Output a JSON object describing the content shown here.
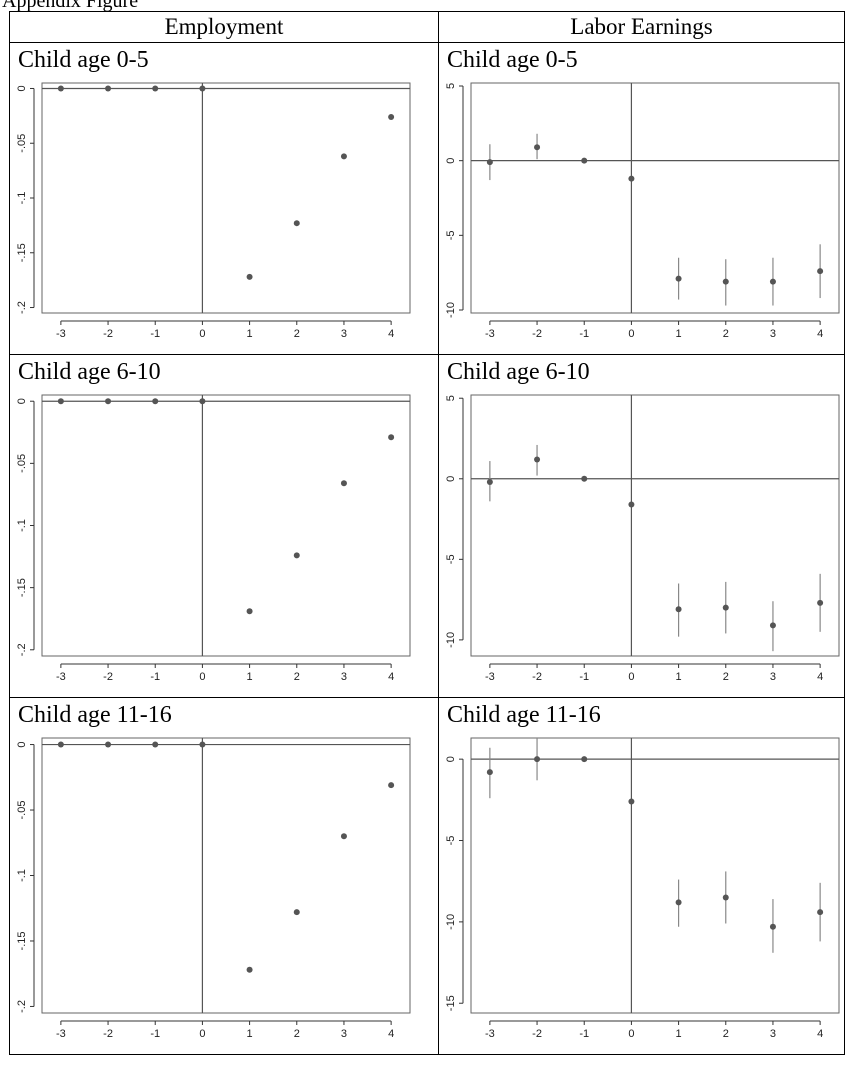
{
  "caption": "Appendix Figure",
  "columns": [
    "Employment",
    "Labor Earnings"
  ],
  "marker_color": "#555555",
  "panels": [
    {
      "row": 0,
      "col": 0,
      "title": "Child age 0-5",
      "chart_data": {
        "type": "scatter",
        "x": [
          -3,
          -2,
          -1,
          0,
          1,
          2,
          3,
          4
        ],
        "y": [
          0,
          0,
          0,
          0,
          -0.172,
          -0.123,
          -0.062,
          -0.026
        ],
        "xticks": [
          "-3",
          "-2",
          "-1",
          "0",
          "1",
          "2",
          "3",
          "4"
        ],
        "yticks": [
          {
            "v": 0,
            "l": "0"
          },
          {
            "v": -0.05,
            "l": "-.05"
          },
          {
            "v": -0.1,
            "l": "-.1"
          },
          {
            "v": -0.15,
            "l": "-.15"
          },
          {
            "v": -0.2,
            "l": "-.2"
          }
        ],
        "xlim": [
          -3.4,
          4.4
        ],
        "ylim": [
          -0.205,
          0.005
        ],
        "hline": 0,
        "vline": 0,
        "ci": null
      }
    },
    {
      "row": 0,
      "col": 1,
      "title": "Child age 0-5",
      "chart_data": {
        "type": "scatter",
        "x": [
          -3,
          -2,
          -1,
          0,
          1,
          2,
          3,
          4
        ],
        "y": [
          -0.1,
          0.9,
          0,
          -1.2,
          -7.9,
          -8.1,
          -8.1,
          -7.4
        ],
        "ci_low": [
          -1.3,
          0.1,
          null,
          null,
          -9.3,
          -9.7,
          -9.7,
          -9.2
        ],
        "ci_high": [
          1.1,
          1.8,
          null,
          null,
          -6.5,
          -6.6,
          -6.5,
          -5.6
        ],
        "xticks": [
          "-3",
          "-2",
          "-1",
          "0",
          "1",
          "2",
          "3",
          "4"
        ],
        "yticks": [
          {
            "v": 5,
            "l": "5"
          },
          {
            "v": 0,
            "l": "0"
          },
          {
            "v": -5,
            "l": "-5"
          },
          {
            "v": -10,
            "l": "-10"
          }
        ],
        "xlim": [
          -3.4,
          4.4
        ],
        "ylim": [
          -10.2,
          5.2
        ],
        "hline": 0,
        "vline": 0
      }
    },
    {
      "row": 1,
      "col": 0,
      "title": "Child age 6-10",
      "chart_data": {
        "type": "scatter",
        "x": [
          -3,
          -2,
          -1,
          0,
          1,
          2,
          3,
          4
        ],
        "y": [
          0,
          0,
          0,
          0,
          -0.169,
          -0.124,
          -0.066,
          -0.029
        ],
        "xticks": [
          "-3",
          "-2",
          "-1",
          "0",
          "1",
          "2",
          "3",
          "4"
        ],
        "yticks": [
          {
            "v": 0,
            "l": "0"
          },
          {
            "v": -0.05,
            "l": "-.05"
          },
          {
            "v": -0.1,
            "l": "-.1"
          },
          {
            "v": -0.15,
            "l": "-.15"
          },
          {
            "v": -0.2,
            "l": "-.2"
          }
        ],
        "xlim": [
          -3.4,
          4.4
        ],
        "ylim": [
          -0.205,
          0.005
        ],
        "hline": 0,
        "vline": 0,
        "ci": null
      }
    },
    {
      "row": 1,
      "col": 1,
      "title": "Child age 6-10",
      "chart_data": {
        "type": "scatter",
        "x": [
          -3,
          -2,
          -1,
          0,
          1,
          2,
          3,
          4
        ],
        "y": [
          -0.2,
          1.2,
          0,
          -1.6,
          -8.1,
          -8.0,
          -9.1,
          -7.7
        ],
        "ci_low": [
          -1.4,
          0.2,
          null,
          null,
          -9.8,
          -9.6,
          -10.7,
          -9.5
        ],
        "ci_high": [
          1.1,
          2.1,
          null,
          null,
          -6.5,
          -6.4,
          -7.6,
          -5.9
        ],
        "xticks": [
          "-3",
          "-2",
          "-1",
          "0",
          "1",
          "2",
          "3",
          "4"
        ],
        "yticks": [
          {
            "v": 5,
            "l": "5"
          },
          {
            "v": 0,
            "l": "0"
          },
          {
            "v": -5,
            "l": "-5"
          },
          {
            "v": -10,
            "l": "-10"
          }
        ],
        "xlim": [
          -3.4,
          4.4
        ],
        "ylim": [
          -11.0,
          5.2
        ],
        "hline": 0,
        "vline": 0
      }
    },
    {
      "row": 2,
      "col": 0,
      "title": "Child age 11-16",
      "chart_data": {
        "type": "scatter",
        "x": [
          -3,
          -2,
          -1,
          0,
          1,
          2,
          3,
          4
        ],
        "y": [
          0,
          0,
          0,
          0,
          -0.172,
          -0.128,
          -0.07,
          -0.031
        ],
        "xticks": [
          "-3",
          "-2",
          "-1",
          "0",
          "1",
          "2",
          "3",
          "4"
        ],
        "yticks": [
          {
            "v": 0,
            "l": "0"
          },
          {
            "v": -0.05,
            "l": "-.05"
          },
          {
            "v": -0.1,
            "l": "-.1"
          },
          {
            "v": -0.15,
            "l": "-.15"
          },
          {
            "v": -0.2,
            "l": "-.2"
          }
        ],
        "xlim": [
          -3.4,
          4.4
        ],
        "ylim": [
          -0.205,
          0.005
        ],
        "hline": 0,
        "vline": 0,
        "ci": null
      }
    },
    {
      "row": 2,
      "col": 1,
      "title": "Child age 11-16",
      "chart_data": {
        "type": "scatter",
        "x": [
          -3,
          -2,
          -1,
          0,
          1,
          2,
          3,
          4
        ],
        "y": [
          -0.8,
          0,
          0,
          -2.6,
          -8.8,
          -8.5,
          -10.3,
          -9.4
        ],
        "ci_low": [
          -2.4,
          -1.3,
          null,
          null,
          -10.3,
          -10.1,
          -11.9,
          -11.2
        ],
        "ci_high": [
          0.7,
          1.3,
          null,
          null,
          -7.4,
          -6.9,
          -8.6,
          -7.6
        ],
        "xticks": [
          "-3",
          "-2",
          "-1",
          "0",
          "1",
          "2",
          "3",
          "4"
        ],
        "yticks": [
          {
            "v": 0,
            "l": "0"
          },
          {
            "v": -5,
            "l": "-5"
          },
          {
            "v": -10,
            "l": "-10"
          },
          {
            "v": -15,
            "l": "-15"
          }
        ],
        "xlim": [
          -3.4,
          4.4
        ],
        "ylim": [
          -15.6,
          1.3
        ],
        "hline": 0,
        "vline": 0
      }
    }
  ]
}
